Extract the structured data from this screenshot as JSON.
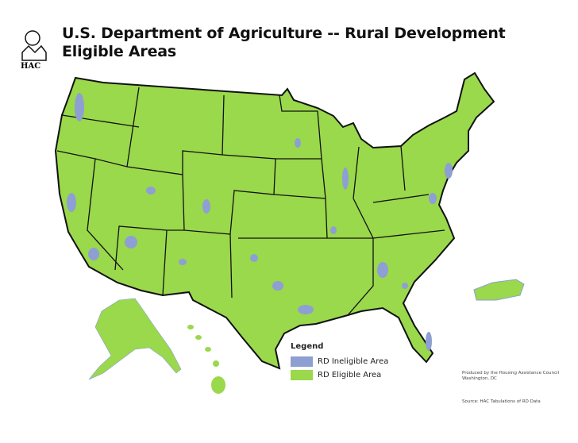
{
  "title_line1": "U.S. Department of Agriculture -- Rural Development",
  "title_line2": "Eligible Areas",
  "logo": {
    "text": "HAC",
    "icon": "house-tree-logo-icon"
  },
  "legend": {
    "title": "Legend",
    "items": [
      {
        "label": "RD Ineligible Area",
        "color": "#8d9fd3"
      },
      {
        "label": "RD Eligible Area",
        "color": "#9ad84c"
      }
    ]
  },
  "credits": {
    "line1": "Produced by the Housing Assistance Council",
    "line2": "Washington, DC"
  },
  "source": "Source: HAC Tabulations of RD Data",
  "colors": {
    "eligible": "#9ad84c",
    "ineligible": "#8d9fd3",
    "border": "#111111"
  }
}
